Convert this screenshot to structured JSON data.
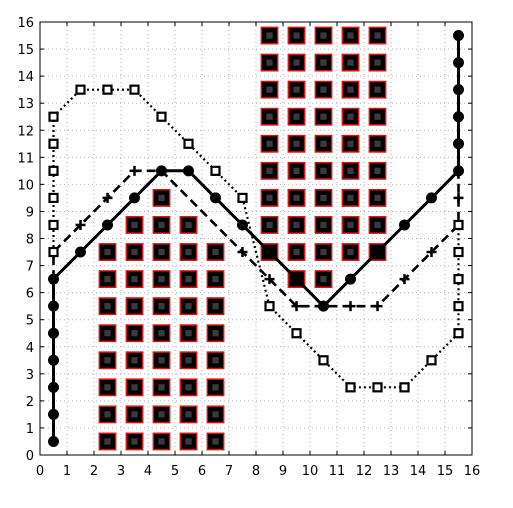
{
  "chart_data": {
    "type": "line",
    "xlim": [
      0,
      16
    ],
    "ylim": [
      0,
      16
    ],
    "x_ticks": [
      "0",
      "1",
      "2",
      "3",
      "4",
      "5",
      "6",
      "7",
      "8",
      "9",
      "10",
      "11",
      "12",
      "13",
      "14",
      "15",
      "16"
    ],
    "y_ticks": [
      "0",
      "1",
      "2",
      "3",
      "4",
      "5",
      "6",
      "7",
      "8",
      "9",
      "10",
      "11",
      "12",
      "13",
      "14",
      "15",
      "16"
    ],
    "grid": true,
    "grid_style": "dotted",
    "colors": {
      "obstacle_fill": "#000000",
      "obstacle_edge": "#e01010",
      "line": "#000000",
      "grid": "#b0b0b0"
    },
    "obstacles": [
      [
        2.5,
        0.5
      ],
      [
        2.5,
        1.5
      ],
      [
        2.5,
        2.5
      ],
      [
        2.5,
        3.5
      ],
      [
        2.5,
        4.5
      ],
      [
        2.5,
        5.5
      ],
      [
        2.5,
        6.5
      ],
      [
        2.5,
        7.5
      ],
      [
        3.5,
        0.5
      ],
      [
        3.5,
        1.5
      ],
      [
        3.5,
        2.5
      ],
      [
        3.5,
        3.5
      ],
      [
        3.5,
        4.5
      ],
      [
        3.5,
        5.5
      ],
      [
        3.5,
        6.5
      ],
      [
        3.5,
        7.5
      ],
      [
        3.5,
        8.5
      ],
      [
        4.5,
        0.5
      ],
      [
        4.5,
        1.5
      ],
      [
        4.5,
        2.5
      ],
      [
        4.5,
        3.5
      ],
      [
        4.5,
        4.5
      ],
      [
        4.5,
        5.5
      ],
      [
        4.5,
        6.5
      ],
      [
        4.5,
        7.5
      ],
      [
        4.5,
        8.5
      ],
      [
        4.5,
        9.5
      ],
      [
        5.5,
        0.5
      ],
      [
        5.5,
        1.5
      ],
      [
        5.5,
        2.5
      ],
      [
        5.5,
        3.5
      ],
      [
        5.5,
        4.5
      ],
      [
        5.5,
        5.5
      ],
      [
        5.5,
        6.5
      ],
      [
        5.5,
        7.5
      ],
      [
        5.5,
        8.5
      ],
      [
        6.5,
        0.5
      ],
      [
        6.5,
        1.5
      ],
      [
        6.5,
        2.5
      ],
      [
        6.5,
        3.5
      ],
      [
        6.5,
        4.5
      ],
      [
        6.5,
        5.5
      ],
      [
        6.5,
        6.5
      ],
      [
        6.5,
        7.5
      ],
      [
        8.5,
        7.5
      ],
      [
        8.5,
        8.5
      ],
      [
        8.5,
        9.5
      ],
      [
        8.5,
        10.5
      ],
      [
        8.5,
        11.5
      ],
      [
        8.5,
        12.5
      ],
      [
        8.5,
        13.5
      ],
      [
        8.5,
        14.5
      ],
      [
        8.5,
        15.5
      ],
      [
        9.5,
        6.5
      ],
      [
        9.5,
        7.5
      ],
      [
        9.5,
        8.5
      ],
      [
        9.5,
        9.5
      ],
      [
        9.5,
        10.5
      ],
      [
        9.5,
        11.5
      ],
      [
        9.5,
        12.5
      ],
      [
        9.5,
        13.5
      ],
      [
        9.5,
        14.5
      ],
      [
        9.5,
        15.5
      ],
      [
        10.5,
        6.5
      ],
      [
        10.5,
        7.5
      ],
      [
        10.5,
        8.5
      ],
      [
        10.5,
        9.5
      ],
      [
        10.5,
        10.5
      ],
      [
        10.5,
        11.5
      ],
      [
        10.5,
        12.5
      ],
      [
        10.5,
        13.5
      ],
      [
        10.5,
        14.5
      ],
      [
        10.5,
        15.5
      ],
      [
        11.5,
        7.5
      ],
      [
        11.5,
        8.5
      ],
      [
        11.5,
        9.5
      ],
      [
        11.5,
        10.5
      ],
      [
        11.5,
        11.5
      ],
      [
        11.5,
        12.5
      ],
      [
        11.5,
        13.5
      ],
      [
        11.5,
        14.5
      ],
      [
        11.5,
        15.5
      ],
      [
        12.5,
        7.5
      ],
      [
        12.5,
        8.5
      ],
      [
        12.5,
        9.5
      ],
      [
        12.5,
        10.5
      ],
      [
        12.5,
        11.5
      ],
      [
        12.5,
        12.5
      ],
      [
        12.5,
        13.5
      ],
      [
        12.5,
        14.5
      ],
      [
        12.5,
        15.5
      ]
    ],
    "series": [
      {
        "style": "solid",
        "marker": "circle",
        "points": [
          [
            0.5,
            0.5
          ],
          [
            0.5,
            1.5
          ],
          [
            0.5,
            2.5
          ],
          [
            0.5,
            3.5
          ],
          [
            0.5,
            4.5
          ],
          [
            0.5,
            5.5
          ],
          [
            0.5,
            6.5
          ],
          [
            1.5,
            7.5
          ],
          [
            2.5,
            8.5
          ],
          [
            3.5,
            9.5
          ],
          [
            4.5,
            10.5
          ],
          [
            5.5,
            10.5
          ],
          [
            6.5,
            9.5
          ],
          [
            7.5,
            8.5
          ],
          [
            8.5,
            7.5
          ],
          [
            9.5,
            6.5
          ],
          [
            10.5,
            5.5
          ],
          [
            11.5,
            6.5
          ],
          [
            12.5,
            7.5
          ],
          [
            13.5,
            8.5
          ],
          [
            14.5,
            9.5
          ],
          [
            15.5,
            10.5
          ],
          [
            15.5,
            11.5
          ],
          [
            15.5,
            12.5
          ],
          [
            15.5,
            13.5
          ],
          [
            15.5,
            14.5
          ],
          [
            15.5,
            15.5
          ]
        ]
      },
      {
        "style": "dashed",
        "marker": "plus",
        "points": [
          [
            0.5,
            6.5
          ],
          [
            0.5,
            7.5
          ],
          [
            1.5,
            8.5
          ],
          [
            2.5,
            9.5
          ],
          [
            3.5,
            10.5
          ],
          [
            4.5,
            10.5
          ],
          [
            7.5,
            7.5
          ],
          [
            8.5,
            6.5
          ],
          [
            9.5,
            5.5
          ],
          [
            10.5,
            5.5
          ],
          [
            11.5,
            5.5
          ],
          [
            12.5,
            5.5
          ],
          [
            13.5,
            6.5
          ],
          [
            14.5,
            7.5
          ],
          [
            15.5,
            8.5
          ],
          [
            15.5,
            9.5
          ],
          [
            15.5,
            10.5
          ]
        ]
      },
      {
        "style": "dotted",
        "marker": "square",
        "points": [
          [
            0.5,
            7.5
          ],
          [
            0.5,
            8.5
          ],
          [
            0.5,
            9.5
          ],
          [
            0.5,
            10.5
          ],
          [
            0.5,
            11.5
          ],
          [
            0.5,
            12.5
          ],
          [
            1.5,
            13.5
          ],
          [
            2.5,
            13.5
          ],
          [
            3.5,
            13.5
          ],
          [
            4.5,
            12.5
          ],
          [
            5.5,
            11.5
          ],
          [
            6.5,
            10.5
          ],
          [
            7.5,
            9.5
          ],
          [
            8.5,
            5.5
          ],
          [
            9.5,
            4.5
          ],
          [
            10.5,
            3.5
          ],
          [
            11.5,
            2.5
          ],
          [
            12.5,
            2.5
          ],
          [
            13.5,
            2.5
          ],
          [
            14.5,
            3.5
          ],
          [
            15.5,
            4.5
          ],
          [
            15.5,
            5.5
          ],
          [
            15.5,
            6.5
          ],
          [
            15.5,
            7.5
          ],
          [
            15.5,
            8.5
          ]
        ]
      }
    ]
  }
}
